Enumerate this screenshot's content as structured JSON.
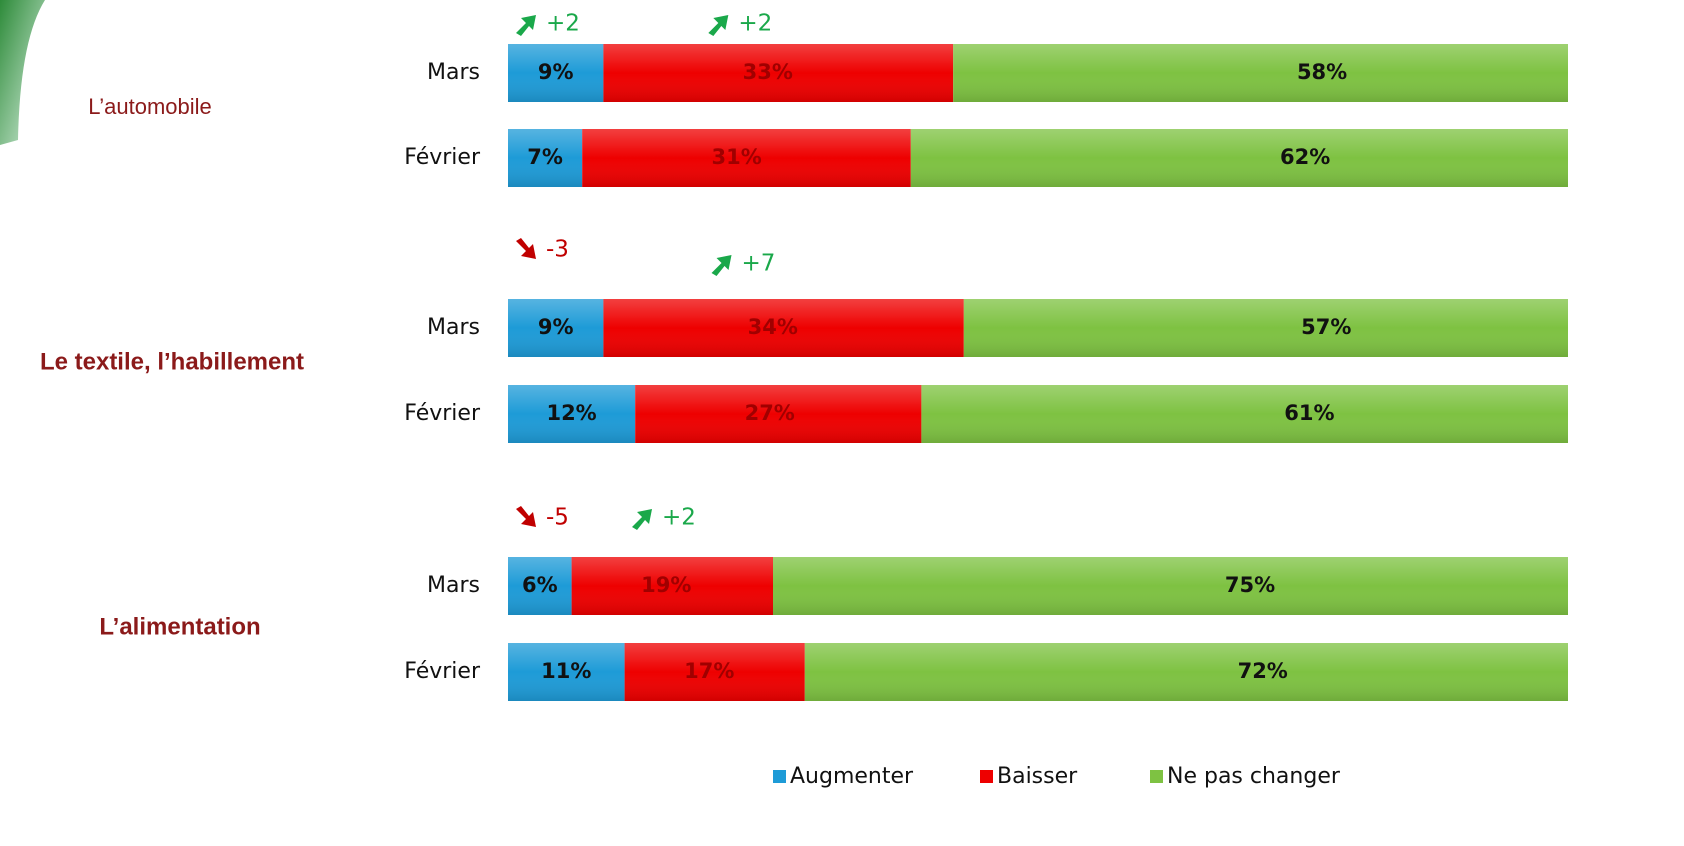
{
  "chart_data": {
    "type": "bar",
    "stacked": true,
    "orientation": "horizontal",
    "groups": [
      "L’automobile",
      "Le textile, l’habillement",
      "L’alimentation"
    ],
    "categories": [
      "Mars",
      "Février",
      "Mars",
      "Février",
      "Mars",
      "Février"
    ],
    "xlim": [
      0,
      100
    ],
    "series": [
      {
        "name": "Augmenter",
        "color": "#1e9bd7",
        "values": [
          9,
          7,
          9,
          12,
          6,
          11
        ],
        "value_labels": [
          "9%",
          "7%",
          "9%",
          "12%",
          "6%",
          "11%"
        ]
      },
      {
        "name": "Baisser",
        "color": "#ee0000",
        "values": [
          33,
          31,
          34,
          27,
          19,
          17
        ],
        "value_labels": [
          "33%",
          "31%",
          "34%",
          "27%",
          "19%",
          "17%"
        ]
      },
      {
        "name": "Ne pas changer",
        "color": "#7ec242",
        "values": [
          58,
          62,
          57,
          61,
          75,
          72
        ],
        "value_labels": [
          "58%",
          "62%",
          "57%",
          "61%",
          "75%",
          "72%"
        ]
      }
    ],
    "changes": [
      [
        {
          "value": 2,
          "label": "+2"
        },
        {
          "value": 2,
          "label": "+2"
        }
      ],
      [
        {
          "value": -3,
          "label": "-3"
        },
        {
          "value": 7,
          "label": "+7"
        }
      ],
      [
        {
          "value": -5,
          "label": "-5"
        },
        {
          "value": 2,
          "label": "+2"
        }
      ]
    ],
    "up_color": "#1aa84a",
    "down_color": "#c00000",
    "legend": "bottom"
  }
}
